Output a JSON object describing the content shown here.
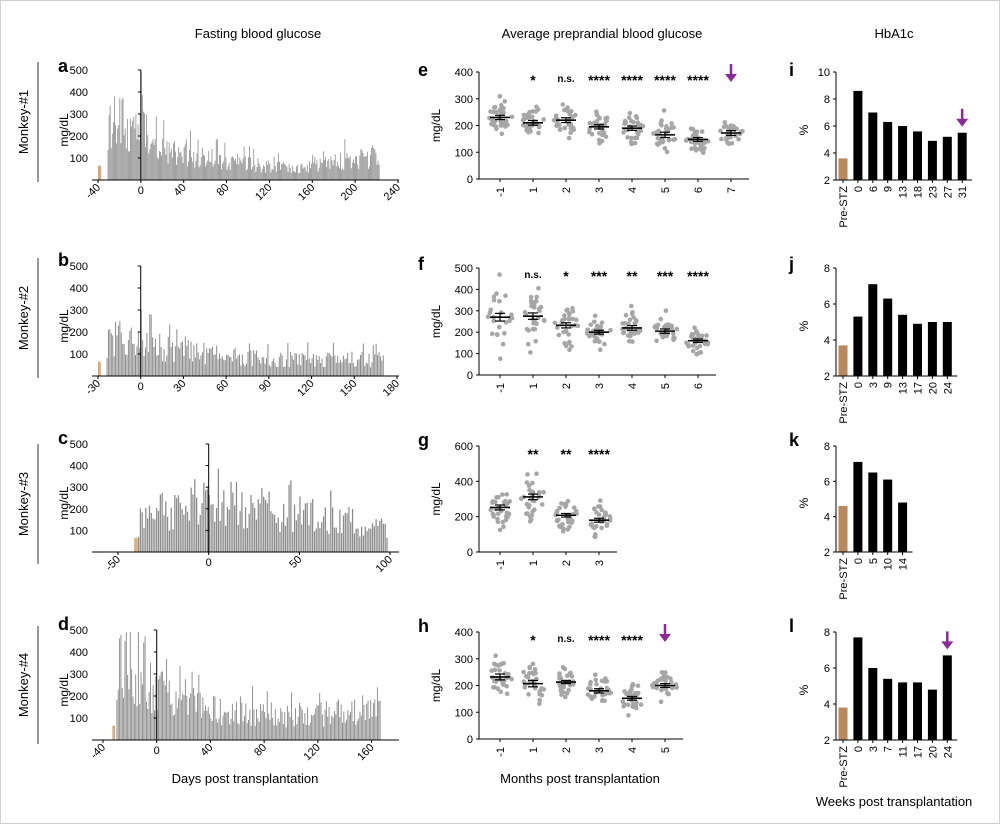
{
  "headers": {
    "fasting": "Fasting blood glucose",
    "preprandial": "Average preprandial blood glucose",
    "hba1c": "HbA1c"
  },
  "row_labels": [
    "Monkey-#1",
    "Monkey-#2",
    "Monkey-#3",
    "Monkey-#4"
  ],
  "xlabels": {
    "fasting": "Days post transplantation",
    "preprandial": "Months post transplantation",
    "hba1c": "Weeks post transplantation"
  },
  "colors": {
    "bar_gray": "#8c8c8c",
    "pre_bar": "#d4a36e",
    "hba_black": "#000000",
    "hba_pre": "#b8895a",
    "dots": "#a6a6a6",
    "arrow": "#8b2a9a"
  },
  "chart_data": [
    {
      "id": "a",
      "type": "bar",
      "ylabel": "mg/dL",
      "ylim": [
        0,
        500
      ],
      "yticks": [
        100,
        200,
        300,
        400,
        500
      ],
      "xlim": [
        -40,
        240
      ],
      "xticks": [
        -40,
        0,
        40,
        80,
        120,
        160,
        200,
        240
      ],
      "pre_range": [
        -40,
        -38
      ],
      "data_range": [
        -31,
        222
      ],
      "profile": [
        [
          -31,
          300
        ],
        [
          -20,
          280
        ],
        [
          -5,
          260
        ],
        [
          0,
          300
        ],
        [
          10,
          200
        ],
        [
          30,
          140
        ],
        [
          60,
          110
        ],
        [
          90,
          95
        ],
        [
          110,
          75
        ],
        [
          140,
          60
        ],
        [
          160,
          65
        ],
        [
          190,
          100
        ],
        [
          222,
          115
        ]
      ]
    },
    {
      "id": "b",
      "type": "bar",
      "ylabel": "mg/dL",
      "ylim": [
        0,
        500
      ],
      "yticks": [
        100,
        200,
        300,
        400,
        500
      ],
      "xlim": [
        -30,
        180
      ],
      "xticks": [
        -30,
        0,
        30,
        60,
        90,
        120,
        150,
        180
      ],
      "pre_range": [
        -30,
        -29
      ],
      "data_range": [
        -24,
        170
      ],
      "profile": [
        [
          -24,
          180
        ],
        [
          -10,
          200
        ],
        [
          0,
          180
        ],
        [
          20,
          130
        ],
        [
          50,
          110
        ],
        [
          80,
          90
        ],
        [
          110,
          80
        ],
        [
          140,
          85
        ],
        [
          170,
          80
        ]
      ]
    },
    {
      "id": "c",
      "type": "bar",
      "ylabel": "mg/dL",
      "ylim": [
        0,
        500
      ],
      "yticks": [
        100,
        200,
        300,
        400,
        500
      ],
      "xlim": [
        -50,
        100
      ],
      "xticks": [
        -50,
        0,
        50,
        100
      ],
      "pre_range": [
        -41,
        -40
      ],
      "data_range": [
        -39,
        98
      ],
      "profile": [
        [
          -39,
          150
        ],
        [
          -20,
          200
        ],
        [
          0,
          250
        ],
        [
          20,
          240
        ],
        [
          40,
          200
        ],
        [
          60,
          180
        ],
        [
          80,
          160
        ],
        [
          98,
          130
        ]
      ]
    },
    {
      "id": "d",
      "type": "bar",
      "ylabel": "mg/dL",
      "ylim": [
        0,
        500
      ],
      "yticks": [
        100,
        200,
        300,
        400,
        500
      ],
      "xlim": [
        -40,
        170
      ],
      "xticks": [
        -40,
        0,
        40,
        80,
        120,
        160
      ],
      "pre_range": [
        -33,
        -32
      ],
      "data_range": [
        -30,
        166
      ],
      "profile": [
        [
          -30,
          400
        ],
        [
          -20,
          320
        ],
        [
          -10,
          270
        ],
        [
          0,
          260
        ],
        [
          20,
          190
        ],
        [
          40,
          150
        ],
        [
          70,
          130
        ],
        [
          100,
          125
        ],
        [
          130,
          135
        ],
        [
          166,
          150
        ]
      ]
    },
    {
      "id": "e",
      "type": "scatter",
      "ylabel": "mg/dL",
      "ylim": [
        0,
        400
      ],
      "yticks": [
        0,
        100,
        200,
        300,
        400
      ],
      "categories": [
        "-1",
        "1",
        "2",
        "3",
        "4",
        "5",
        "6",
        "7"
      ],
      "means": [
        230,
        210,
        220,
        195,
        190,
        165,
        148,
        172
      ],
      "sems": [
        8,
        9,
        9,
        8,
        8,
        10,
        7,
        9
      ],
      "sd": [
        30,
        33,
        30,
        30,
        28,
        35,
        27,
        30
      ],
      "n": [
        32,
        30,
        30,
        31,
        30,
        30,
        30,
        28
      ],
      "significance": [
        "",
        "*",
        "n.s.",
        "****",
        "****",
        "****",
        "****",
        ""
      ],
      "arrow_index": 7
    },
    {
      "id": "f",
      "type": "scatter",
      "ylabel": "mg/dL",
      "ylim": [
        0,
        500
      ],
      "yticks": [
        0,
        100,
        200,
        300,
        400,
        500
      ],
      "categories": [
        "-1",
        "1",
        "2",
        "3",
        "4",
        "5",
        "6"
      ],
      "means": [
        270,
        275,
        232,
        200,
        220,
        205,
        160
      ],
      "sems": [
        18,
        15,
        12,
        9,
        11,
        10,
        8
      ],
      "sd": [
        80,
        70,
        55,
        40,
        40,
        40,
        30
      ],
      "n": [
        24,
        30,
        30,
        30,
        28,
        30,
        28
      ],
      "significance": [
        "",
        "n.s.",
        "*",
        "***",
        "**",
        "***",
        "****"
      ],
      "arrow_index": null
    },
    {
      "id": "g",
      "type": "scatter",
      "ylabel": "mg/dL",
      "ylim": [
        0,
        600
      ],
      "yticks": [
        0,
        200,
        400,
        600
      ],
      "categories": [
        "-1",
        "1",
        "2",
        "3"
      ],
      "means": [
        252,
        312,
        208,
        180
      ],
      "sems": [
        14,
        16,
        10,
        11
      ],
      "sd": [
        60,
        70,
        40,
        45
      ],
      "n": [
        30,
        30,
        30,
        30
      ],
      "significance": [
        "",
        "**",
        "**",
        "****"
      ],
      "arrow_index": null
    },
    {
      "id": "h",
      "type": "scatter",
      "ylabel": "mg/dL",
      "ylim": [
        0,
        400
      ],
      "yticks": [
        0,
        100,
        200,
        300,
        400
      ],
      "categories": [
        "-1",
        "1",
        "2",
        "3",
        "4",
        "5"
      ],
      "means": [
        232,
        207,
        213,
        180,
        152,
        200
      ],
      "sems": [
        11,
        12,
        6,
        8,
        7,
        7
      ],
      "sd": [
        45,
        50,
        25,
        32,
        28,
        28
      ],
      "n": [
        30,
        30,
        30,
        30,
        30,
        30
      ],
      "significance": [
        "",
        "*",
        "n.s.",
        "****",
        "****",
        ""
      ],
      "arrow_index": 5
    },
    {
      "id": "i",
      "type": "bar",
      "ylabel": "%",
      "ylim": [
        2,
        10
      ],
      "yticks": [
        2,
        4,
        6,
        8,
        10
      ],
      "categories": [
        "Pre-STZ",
        "0",
        "6",
        "9",
        "13",
        "18",
        "23",
        "27",
        "31"
      ],
      "values": [
        3.6,
        8.6,
        7.0,
        6.3,
        6.0,
        5.6,
        4.9,
        5.2,
        5.5
      ],
      "arrow_index": 8
    },
    {
      "id": "j",
      "type": "bar",
      "ylabel": "%",
      "ylim": [
        2,
        8
      ],
      "yticks": [
        2,
        4,
        6,
        8
      ],
      "categories": [
        "Pre-STZ",
        "0",
        "3",
        "9",
        "13",
        "17",
        "20",
        "24"
      ],
      "values": [
        3.7,
        5.3,
        7.1,
        6.3,
        5.4,
        4.9,
        5.0,
        5.0
      ],
      "arrow_index": null
    },
    {
      "id": "k",
      "type": "bar",
      "ylabel": "%",
      "ylim": [
        2,
        8
      ],
      "yticks": [
        2,
        4,
        6,
        8
      ],
      "categories": [
        "Pre-STZ",
        "0",
        "5",
        "10",
        "14"
      ],
      "values": [
        4.6,
        7.1,
        6.5,
        6.1,
        4.8
      ],
      "arrow_index": null
    },
    {
      "id": "l",
      "type": "bar",
      "ylabel": "%",
      "ylim": [
        2,
        8
      ],
      "yticks": [
        2,
        4,
        6,
        8
      ],
      "categories": [
        "Pre-STZ",
        "0",
        "3",
        "7",
        "11",
        "17",
        "20",
        "24"
      ],
      "values": [
        3.8,
        7.7,
        6.0,
        5.4,
        5.2,
        5.2,
        4.8,
        6.7
      ],
      "arrow_index": 7
    }
  ]
}
